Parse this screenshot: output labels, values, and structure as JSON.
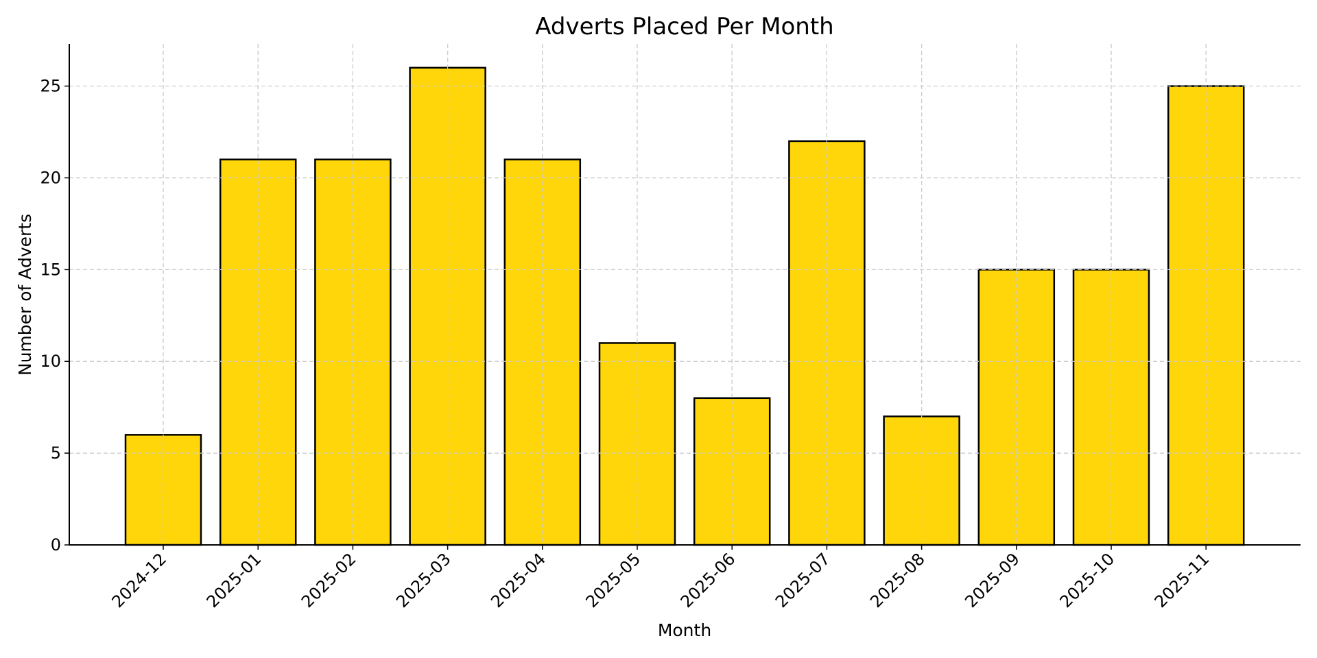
{
  "chart_data": {
    "type": "bar",
    "title": "Adverts Placed Per Month",
    "xlabel": "Month",
    "ylabel": "Number of Adverts",
    "categories": [
      "2024-12",
      "2025-01",
      "2025-02",
      "2025-03",
      "2025-04",
      "2025-05",
      "2025-06",
      "2025-07",
      "2025-08",
      "2025-09",
      "2025-10",
      "2025-11"
    ],
    "values": [
      6,
      21,
      21,
      26,
      21,
      11,
      8,
      22,
      7,
      15,
      15,
      25
    ],
    "ylim": [
      0,
      27.3
    ],
    "yticks": [
      0,
      5,
      10,
      15,
      20,
      25
    ],
    "grid": true,
    "legend": "none",
    "colors": {
      "bar_fill": "#FFD60A",
      "bar_edge": "#000000",
      "grid": "#cccccc"
    }
  }
}
